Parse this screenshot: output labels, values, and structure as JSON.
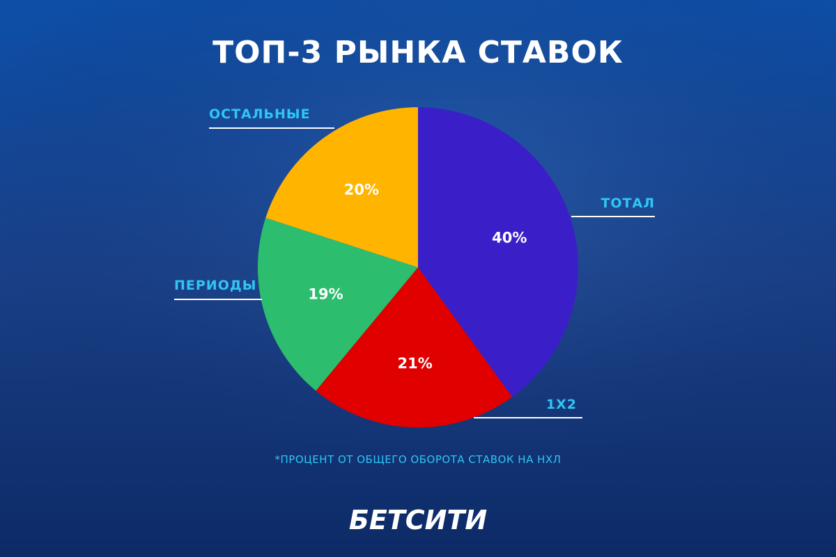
{
  "chart_data": {
    "type": "pie",
    "title": "ТОП-3 РЫНКА СТАВОК",
    "categories": [
      "ТОТАЛ",
      "1X2",
      "ПЕРИОДЫ",
      "ОСТАЛЬНЫЕ"
    ],
    "values": [
      40,
      21,
      19,
      20
    ],
    "value_labels": [
      "40%",
      "21%",
      "19%",
      "20%"
    ],
    "colors": [
      "#3a1fc8",
      "#e00000",
      "#2dbd6e",
      "#ffb400"
    ],
    "footnote": "*ПРОЦЕНТ ОТ ОБЩЕГО ОБОРОТА СТАВОК НА НХЛ",
    "brand": "БЕТСИТИ"
  }
}
